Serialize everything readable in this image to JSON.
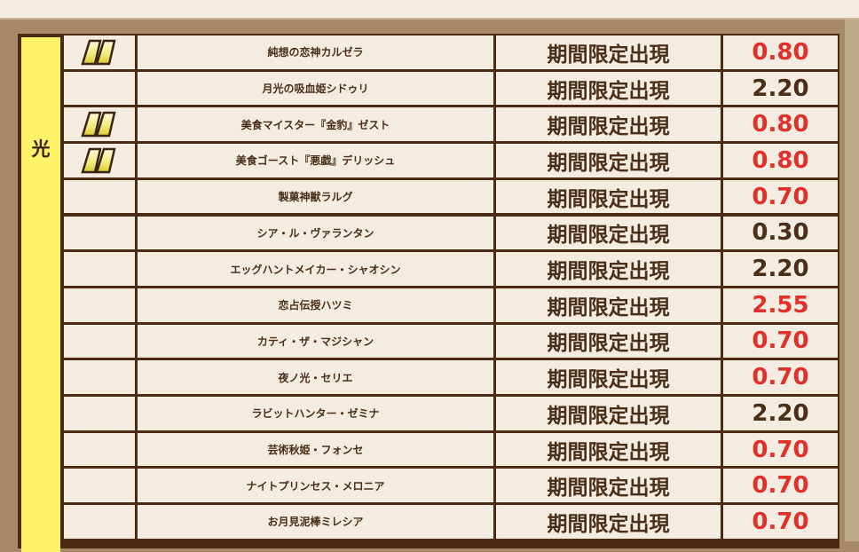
{
  "attribute_label": "光",
  "colors": {
    "highlight_value": "#e0302a",
    "normal_value": "#4a2e18",
    "attribute_bg": "#fdf36b"
  },
  "rows": [
    {
      "icon": "pause-badge-icon",
      "name": "純想の恋神カルゼラ",
      "status": "期間限定出現",
      "value": "0.80",
      "highlight": true
    },
    {
      "icon": "",
      "name": "月光の吸血姫シドゥリ",
      "status": "期間限定出現",
      "value": "2.20",
      "highlight": false
    },
    {
      "icon": "pause-badge-icon",
      "name": "美食マイスター『金豹』ゼスト",
      "status": "期間限定出現",
      "value": "0.80",
      "highlight": true
    },
    {
      "icon": "pause-badge-icon",
      "name": "美食ゴースト『悪戯』デリッシュ",
      "status": "期間限定出現",
      "value": "0.80",
      "highlight": true
    },
    {
      "icon": "",
      "name": "製菓神獣ラルグ",
      "status": "期間限定出現",
      "value": "0.70",
      "highlight": true
    },
    {
      "icon": "",
      "name": "シア・ル・ヴァランタン",
      "status": "期間限定出現",
      "value": "0.30",
      "highlight": false
    },
    {
      "icon": "",
      "name": "エッグハントメイカー・シャオシン",
      "status": "期間限定出現",
      "value": "2.20",
      "highlight": false
    },
    {
      "icon": "",
      "name": "恋占伝授ハツミ",
      "status": "期間限定出現",
      "value": "2.55",
      "highlight": true
    },
    {
      "icon": "",
      "name": "カティ・ザ・マジシャン",
      "status": "期間限定出現",
      "value": "0.70",
      "highlight": true
    },
    {
      "icon": "",
      "name": "夜ノ光・セリエ",
      "status": "期間限定出現",
      "value": "0.70",
      "highlight": true
    },
    {
      "icon": "",
      "name": "ラビットハンター・ゼミナ",
      "status": "期間限定出現",
      "value": "2.20",
      "highlight": false
    },
    {
      "icon": "",
      "name": "芸術秋姫・フォンセ",
      "status": "期間限定出現",
      "value": "0.70",
      "highlight": true
    },
    {
      "icon": "",
      "name": "ナイトプリンセス・メロニア",
      "status": "期間限定出現",
      "value": "0.70",
      "highlight": true
    },
    {
      "icon": "",
      "name": "お月見泥棒ミレシア",
      "status": "期間限定出現",
      "value": "0.70",
      "highlight": true
    }
  ]
}
